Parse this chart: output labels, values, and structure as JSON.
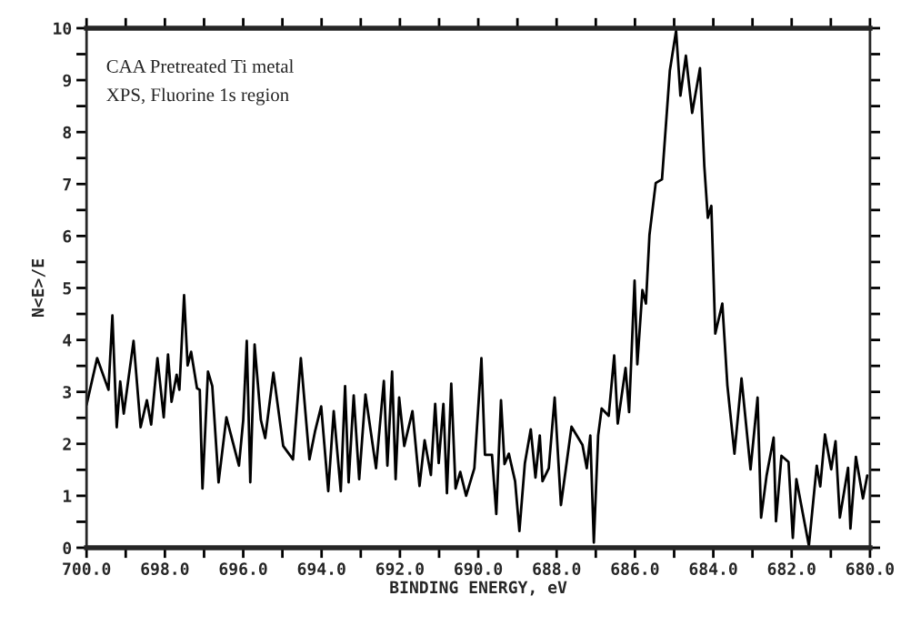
{
  "chart_data": {
    "type": "line",
    "annotations": [
      "CAA Pretreated Ti metal",
      "XPS, Fluorine 1s region"
    ],
    "xlabel": "BINDING ENERGY, eV",
    "ylabel": "N<E>/E",
    "series": [
      {
        "color": "#000000",
        "x": [
          700.0,
          699.73,
          699.44,
          699.34,
          699.23,
          699.14,
          699.05,
          698.8,
          698.62,
          698.46,
          698.35,
          698.19,
          698.03,
          697.92,
          697.83,
          697.7,
          697.63,
          697.51,
          697.42,
          697.33,
          697.18,
          697.11,
          697.04,
          696.9,
          696.79,
          696.63,
          696.43,
          696.11,
          696.0,
          695.91,
          695.82,
          695.71,
          695.55,
          695.44,
          695.23,
          694.98,
          694.73,
          694.53,
          694.31,
          694.17,
          694.01,
          693.83,
          693.69,
          693.51,
          693.4,
          693.31,
          693.18,
          693.04,
          692.88,
          692.61,
          692.41,
          692.32,
          692.2,
          692.11,
          692.02,
          691.89,
          691.68,
          691.5,
          691.37,
          691.21,
          691.1,
          691.01,
          690.89,
          690.8,
          690.69,
          690.58,
          690.46,
          690.31,
          690.1,
          689.92,
          689.83,
          689.65,
          689.54,
          689.42,
          689.33,
          689.22,
          689.06,
          688.95,
          688.81,
          688.66,
          688.54,
          688.43,
          688.36,
          688.2,
          688.05,
          687.89,
          687.62,
          687.34,
          687.23,
          687.14,
          687.05,
          686.94,
          686.85,
          686.67,
          686.53,
          686.44,
          686.24,
          686.15,
          686.01,
          685.94,
          685.81,
          685.72,
          685.63,
          685.47,
          685.31,
          685.11,
          684.95,
          684.84,
          684.7,
          684.54,
          684.34,
          684.23,
          684.14,
          684.05,
          683.95,
          683.77,
          683.64,
          683.46,
          683.28,
          683.05,
          682.87,
          682.78,
          682.64,
          682.46,
          682.4,
          682.26,
          682.08,
          681.97,
          681.88,
          681.56,
          681.36,
          681.27,
          681.15,
          680.99,
          680.88,
          680.77,
          680.56,
          680.5,
          680.36,
          680.18,
          680.07
        ],
        "values": [
          2.75,
          3.65,
          3.04,
          4.47,
          2.32,
          3.2,
          2.58,
          3.98,
          2.32,
          2.84,
          2.37,
          3.65,
          2.51,
          3.72,
          2.81,
          3.33,
          3.04,
          4.86,
          3.51,
          3.77,
          3.07,
          3.04,
          1.14,
          3.39,
          3.11,
          1.26,
          2.51,
          1.58,
          2.46,
          3.98,
          1.26,
          3.91,
          2.46,
          2.11,
          3.37,
          1.96,
          1.7,
          3.65,
          1.7,
          2.23,
          2.72,
          1.09,
          2.63,
          1.09,
          3.11,
          1.26,
          2.93,
          1.32,
          2.95,
          1.53,
          3.21,
          1.58,
          3.39,
          1.32,
          2.89,
          1.96,
          2.63,
          1.19,
          2.07,
          1.4,
          2.77,
          1.63,
          2.77,
          1.05,
          3.16,
          1.14,
          1.46,
          1.0,
          1.53,
          3.65,
          1.79,
          1.79,
          0.65,
          2.84,
          1.61,
          1.81,
          1.28,
          0.32,
          1.63,
          2.28,
          1.35,
          2.16,
          1.28,
          1.53,
          2.89,
          0.82,
          2.33,
          1.98,
          1.53,
          2.16,
          0.1,
          2.16,
          2.68,
          2.54,
          3.7,
          2.39,
          3.46,
          2.61,
          5.14,
          3.53,
          4.96,
          4.7,
          6.02,
          7.02,
          7.09,
          9.18,
          9.95,
          8.7,
          9.47,
          8.37,
          9.23,
          7.35,
          6.35,
          6.58,
          4.12,
          4.7,
          3.12,
          1.81,
          3.26,
          1.51,
          2.89,
          0.58,
          1.39,
          2.12,
          0.51,
          1.77,
          1.65,
          0.19,
          1.32,
          0.04,
          1.58,
          1.18,
          2.18,
          1.51,
          2.05,
          0.58,
          1.54,
          0.37,
          1.75,
          0.95,
          1.39
        ]
      }
    ],
    "xlim": [
      700,
      680
    ],
    "ylim": [
      0,
      10
    ],
    "xticks": [
      {
        "value": 700,
        "label": "700.0"
      },
      {
        "value": 699,
        "label": null
      },
      {
        "value": 698,
        "label": "698.0"
      },
      {
        "value": 697,
        "label": null
      },
      {
        "value": 696,
        "label": "696.0"
      },
      {
        "value": 695,
        "label": null
      },
      {
        "value": 694,
        "label": "694.0"
      },
      {
        "value": 693,
        "label": null
      },
      {
        "value": 692,
        "label": "692.0"
      },
      {
        "value": 691,
        "label": null
      },
      {
        "value": 690,
        "label": "690.0"
      },
      {
        "value": 689,
        "label": null
      },
      {
        "value": 688,
        "label": "688.0"
      },
      {
        "value": 687,
        "label": null
      },
      {
        "value": 686,
        "label": "686.0"
      },
      {
        "value": 685,
        "label": null
      },
      {
        "value": 684,
        "label": "684.0"
      },
      {
        "value": 683,
        "label": null
      },
      {
        "value": 682,
        "label": "682.0"
      },
      {
        "value": 681,
        "label": null
      },
      {
        "value": 680,
        "label": "680.0"
      }
    ],
    "yticks": [
      0,
      {
        "value": 0.5,
        "label": null
      },
      1,
      {
        "value": 1.5,
        "label": null
      },
      2,
      {
        "value": 2.5,
        "label": null
      },
      3,
      {
        "value": 3.5,
        "label": null
      },
      4,
      {
        "value": 4.5,
        "label": null
      },
      5,
      {
        "value": 5.5,
        "label": null
      },
      6,
      {
        "value": 6.5,
        "label": null
      },
      7,
      {
        "value": 7.5,
        "label": null
      },
      8,
      {
        "value": 8.5,
        "label": null
      },
      9,
      {
        "value": 9.5,
        "label": null
      },
      10
    ],
    "grid": false,
    "legend": false,
    "marker": "none",
    "line_style": "solid"
  }
}
